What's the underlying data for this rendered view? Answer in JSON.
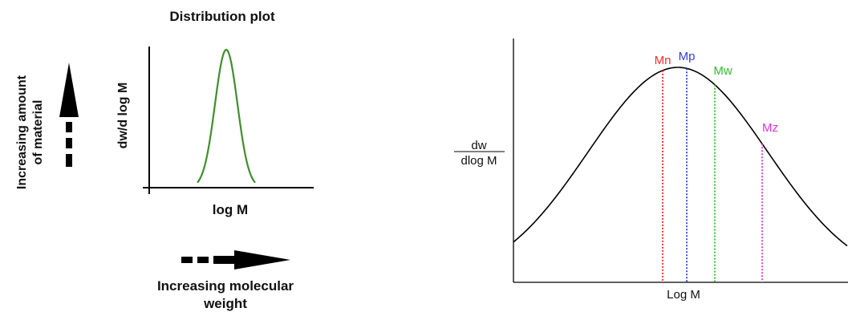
{
  "left_panel": {
    "title": "Distribution plot",
    "y_axis_label": "dw/d log M",
    "x_axis_label": "log M",
    "vertical_arrow_label_line1": "Increasing amount",
    "vertical_arrow_label_line2": "of material",
    "horizontal_arrow_label_line1": "Increasing molecular",
    "horizontal_arrow_label_line2": "weight",
    "curve_color": "#3f8f2a"
  },
  "right_panel": {
    "y_label_numerator": "dw",
    "y_label_denominator": "dlog M",
    "x_axis_label": "Log M",
    "markers": [
      {
        "label": "Mn",
        "color": "#ff2a2a"
      },
      {
        "label": "Mp",
        "color": "#2f3fe0"
      },
      {
        "label": "Mw",
        "color": "#2fbf2f"
      },
      {
        "label": "Mz",
        "color": "#e030e0"
      }
    ]
  }
}
